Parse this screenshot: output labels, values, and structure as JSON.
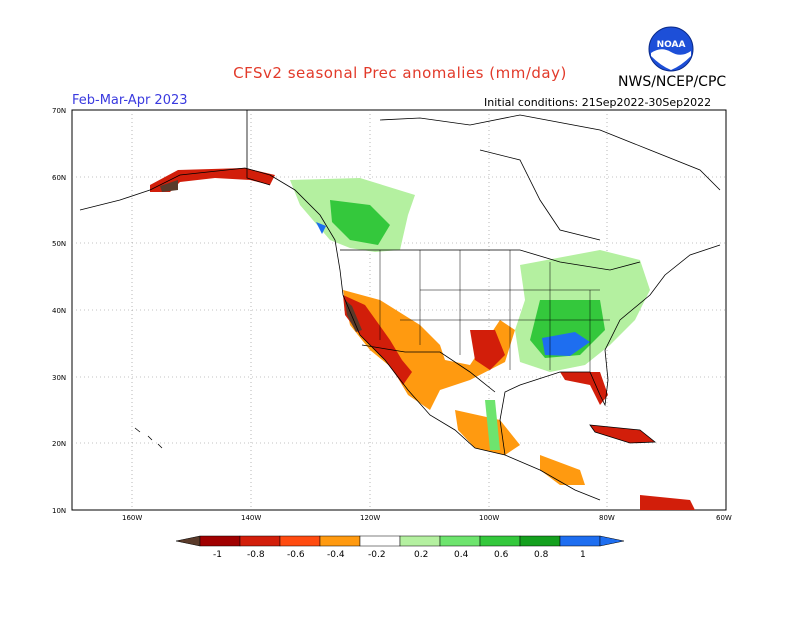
{
  "header": {
    "title": "CFSv2 seasonal Prec anomalies (mm/day)",
    "agency": "NWS/NCEP/CPC",
    "logo_text": "NOAA",
    "season": "Feb-Mar-Apr 2023",
    "initial_conditions": "Initial conditions: 21Sep2022-30Sep2022"
  },
  "map": {
    "lat_labels": [
      "70N",
      "60N",
      "50N",
      "40N",
      "30N",
      "20N",
      "10N"
    ],
    "lon_labels": [
      "160W",
      "140W",
      "120W",
      "100W",
      "80W",
      "60W"
    ],
    "extent": {
      "lon_min": -170,
      "lon_max": -60,
      "lat_min": 10,
      "lat_max": 70
    }
  },
  "colorbar": {
    "labels": [
      "-1",
      "-0.8",
      "-0.6",
      "-0.4",
      "-0.2",
      "0.2",
      "0.4",
      "0.6",
      "0.8",
      "1"
    ],
    "colors": [
      "#5a3a2a",
      "#a00000",
      "#d21e0a",
      "#ff4b10",
      "#ff9a10",
      "#ffffff",
      "#b4f0a0",
      "#6ee46e",
      "#34c83c",
      "#14a01e",
      "#1e6ef0"
    ]
  },
  "colors": {
    "dry_strong": "#5a3a2a",
    "dry": "#d21e0a",
    "dry_light": "#ff9a10",
    "wet_light": "#b4f0a0",
    "wet": "#34c83c",
    "wet_strong": "#1e6ef0"
  }
}
